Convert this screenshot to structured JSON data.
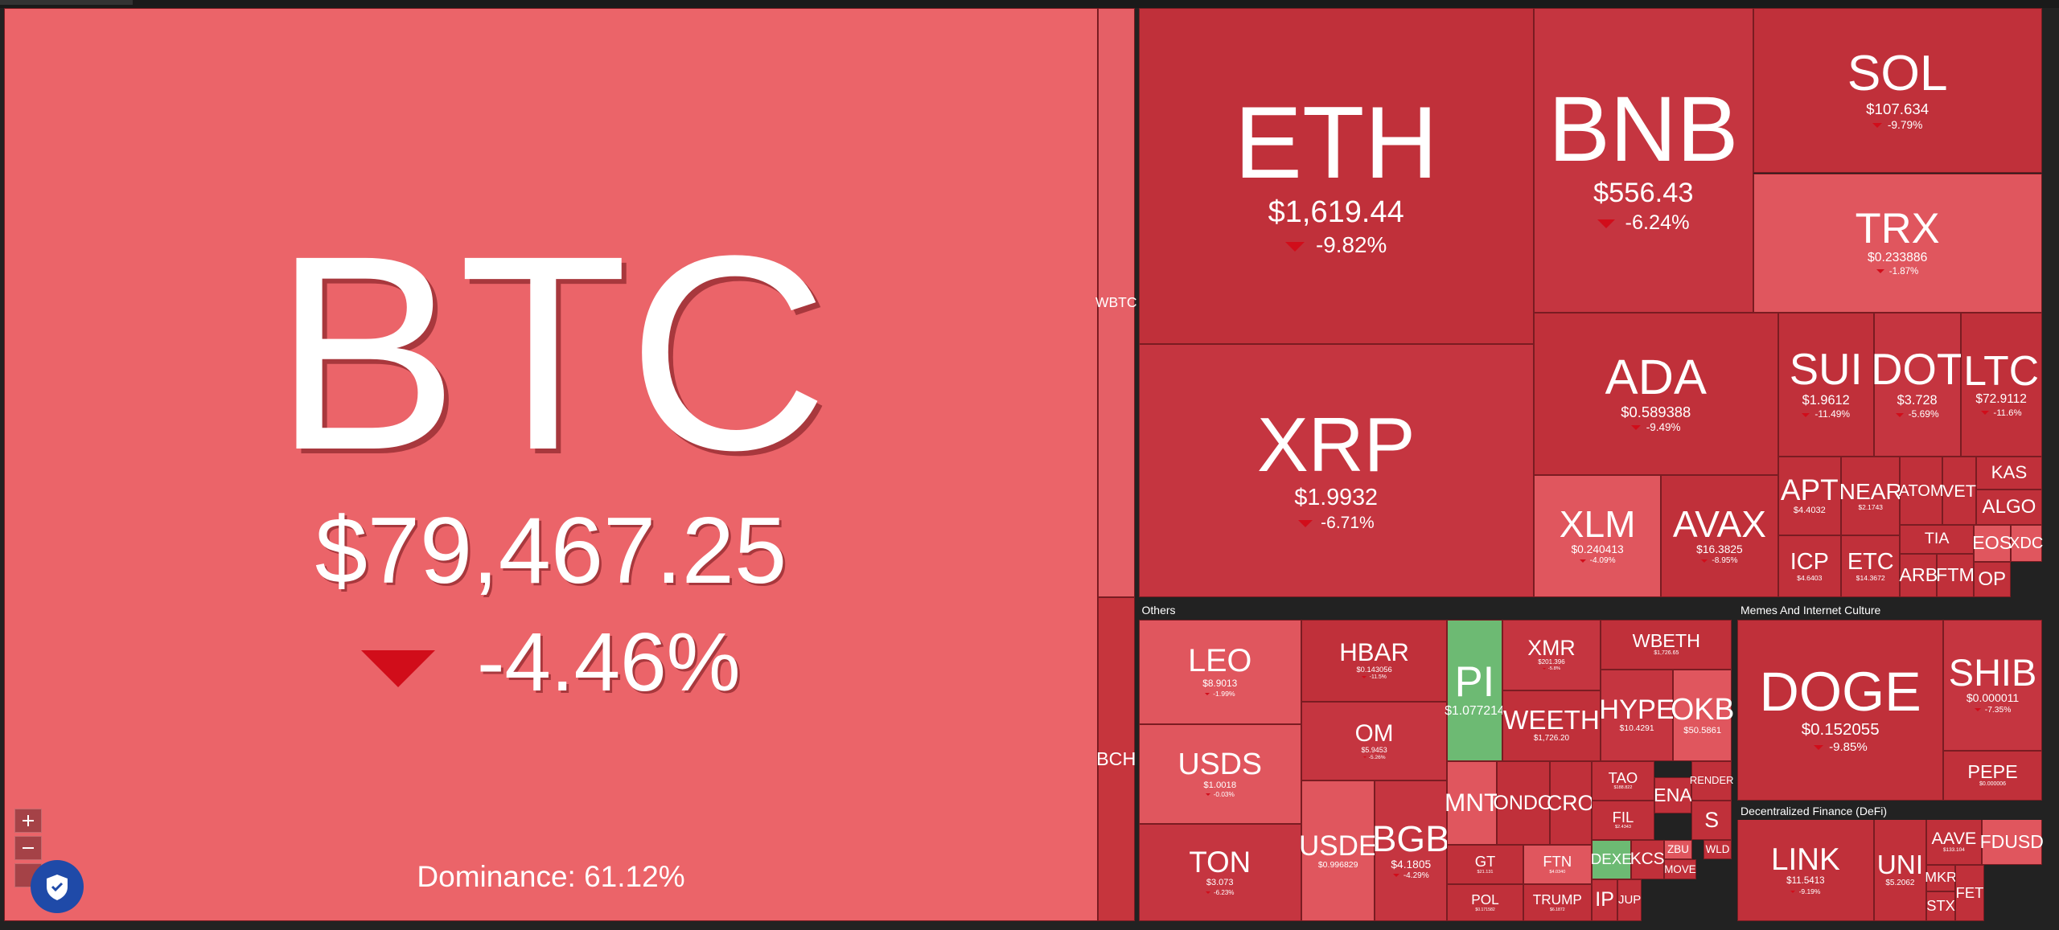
{
  "dominance": "Dominance: 61.12%",
  "sections": [
    "Others",
    "Memes And Internet Culture",
    "Decentralized Finance (DeFi)"
  ],
  "tiles": [
    {
      "symbol": "BTC",
      "price": "$79,467.25",
      "change": "-4.46%",
      "color": "#eb6469"
    },
    {
      "symbol": "WBTC",
      "color": "#e55f66"
    },
    {
      "symbol": "BCH",
      "color": "#c6353d"
    },
    {
      "symbol": "ETH",
      "price": "$1,619.44",
      "change": "-9.82%",
      "color": "#c0303a"
    },
    {
      "symbol": "XRP",
      "price": "$1.9932",
      "change": "-6.71%",
      "color": "#c53540"
    },
    {
      "symbol": "BNB",
      "price": "$556.43",
      "change": "-6.24%",
      "color": "#c53540"
    },
    {
      "symbol": "SOL",
      "price": "$107.634",
      "change": "-9.79%",
      "color": "#c0303a"
    },
    {
      "symbol": "TRX",
      "price": "$0.233886",
      "change": "-1.87%",
      "color": "#e0565e"
    },
    {
      "symbol": "ADA",
      "price": "$0.589388",
      "change": "-9.49%",
      "color": "#c0303a"
    },
    {
      "symbol": "XLM",
      "price": "$0.240413",
      "change": "-4.09%",
      "color": "#e0565e"
    },
    {
      "symbol": "AVAX",
      "price": "$16.3825",
      "change": "-8.95%",
      "color": "#c0303a"
    },
    {
      "symbol": "SUI",
      "price": "$1.9612",
      "change": "-11.49%",
      "color": "#c0303a"
    },
    {
      "symbol": "DOT",
      "price": "$3.728",
      "change": "-5.69%",
      "color": "#c53540"
    },
    {
      "symbol": "LTC",
      "price": "$72.9112",
      "change": "-11.6%",
      "color": "#c0303a"
    },
    {
      "symbol": "APT",
      "price": "$4.4032",
      "color": "#c0303a"
    },
    {
      "symbol": "NEAR",
      "price": "$2.1743",
      "color": "#c0303a"
    },
    {
      "symbol": "ATOM",
      "color": "#c0303a"
    },
    {
      "symbol": "VET",
      "color": "#c0303a"
    },
    {
      "symbol": "KAS",
      "color": "#c0303a"
    },
    {
      "symbol": "ALGO",
      "color": "#c0303a"
    },
    {
      "symbol": "TIA",
      "color": "#c0303a"
    },
    {
      "symbol": "EOS",
      "color": "#e0565e"
    },
    {
      "symbol": "XDC",
      "color": "#e0565e"
    },
    {
      "symbol": "ICP",
      "price": "$4.6403",
      "color": "#c0303a"
    },
    {
      "symbol": "ETC",
      "price": "$14.3672",
      "color": "#c0303a"
    },
    {
      "symbol": "ARB",
      "color": "#c0303a"
    },
    {
      "symbol": "FTM",
      "color": "#c0303a"
    },
    {
      "symbol": "OP",
      "color": "#c0303a"
    },
    {
      "symbol": "LEO",
      "price": "$8.9013",
      "change": "-1.99%",
      "color": "#e0565e"
    },
    {
      "symbol": "USDS",
      "price": "$1.0018",
      "change": "-0.03%",
      "color": "#e0565e"
    },
    {
      "symbol": "TON",
      "price": "$3.073",
      "change": "-6.23%",
      "color": "#c53540"
    },
    {
      "symbol": "HBAR",
      "price": "$0.143056",
      "change": "-11.5%",
      "color": "#c0303a"
    },
    {
      "symbol": "OM",
      "price": "$5.9453",
      "change": "-5.26%",
      "color": "#c53540"
    },
    {
      "symbol": "USDE",
      "price": "$0.996829",
      "color": "#e0565e"
    },
    {
      "symbol": "BGB",
      "price": "$4.1805",
      "change": "-4.29%",
      "color": "#c53540"
    },
    {
      "symbol": "PI",
      "price": "$1.077214",
      "color": "#6dba73"
    },
    {
      "symbol": "XMR",
      "price": "$201.396",
      "change": "-5.8%",
      "color": "#c53540"
    },
    {
      "symbol": "WBETH",
      "price": "$1,726.65",
      "color": "#c0303a"
    },
    {
      "symbol": "WEETH",
      "price": "$1,726.20",
      "color": "#c0303a"
    },
    {
      "symbol": "HYPE",
      "price": "$10.4291",
      "color": "#c53540"
    },
    {
      "symbol": "OKB",
      "price": "$50.5861",
      "color": "#e0565e"
    },
    {
      "symbol": "MNT",
      "color": "#e0565e"
    },
    {
      "symbol": "ONDO",
      "color": "#c0303a"
    },
    {
      "symbol": "CRO",
      "color": "#c0303a"
    },
    {
      "symbol": "TAO",
      "price": "$188.822",
      "color": "#c0303a"
    },
    {
      "symbol": "ENA",
      "color": "#c0303a"
    },
    {
      "symbol": "RENDER",
      "color": "#c0303a"
    },
    {
      "symbol": "FIL",
      "price": "$2.4343",
      "color": "#c0303a"
    },
    {
      "symbol": "S",
      "color": "#c0303a"
    },
    {
      "symbol": "GT",
      "price": "$21.131",
      "color": "#c0303a"
    },
    {
      "symbol": "FTN",
      "price": "$4.0340",
      "color": "#e0565e"
    },
    {
      "symbol": "DEXE",
      "color": "#6dba73"
    },
    {
      "symbol": "KCS",
      "color": "#c0303a"
    },
    {
      "symbol": "ZBU",
      "color": "#e0565e"
    },
    {
      "symbol": "WLD",
      "color": "#c0303a"
    },
    {
      "symbol": "POL",
      "price": "$0.171582",
      "color": "#c0303a"
    },
    {
      "symbol": "TRUMP",
      "price": "$6.1872",
      "color": "#c0303a"
    },
    {
      "symbol": "IP",
      "color": "#c0303a"
    },
    {
      "symbol": "JUP",
      "color": "#c0303a"
    },
    {
      "symbol": "MOVE",
      "color": "#c0303a"
    },
    {
      "symbol": "DOGE",
      "price": "$0.152055",
      "change": "-9.85%",
      "color": "#c0303a"
    },
    {
      "symbol": "SHIB",
      "price": "$0.000011",
      "change": "-7.35%",
      "color": "#c53540"
    },
    {
      "symbol": "PEPE",
      "price": "$0.000006",
      "color": "#c0303a"
    },
    {
      "symbol": "LINK",
      "price": "$11.5413",
      "change": "-9.19%",
      "color": "#c0303a"
    },
    {
      "symbol": "UNI",
      "price": "$5.2062",
      "color": "#c0303a"
    },
    {
      "symbol": "AAVE",
      "price": "$133.104",
      "color": "#c0303a"
    },
    {
      "symbol": "FDUSD",
      "color": "#e0565e"
    },
    {
      "symbol": "MKR",
      "color": "#c0303a"
    },
    {
      "symbol": "STX",
      "color": "#c0303a"
    },
    {
      "symbol": "FET",
      "color": "#c0303a"
    }
  ]
}
